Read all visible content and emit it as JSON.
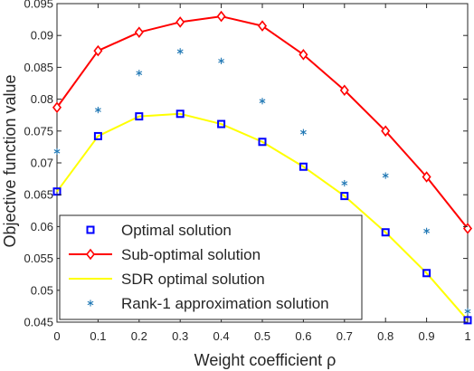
{
  "chart_data": {
    "type": "line",
    "xlabel": "Weight coefficient ρ",
    "ylabel": "Objective function value",
    "xlim": [
      0,
      1
    ],
    "ylim": [
      0.045,
      0.095
    ],
    "x": [
      0,
      0.1,
      0.2,
      0.3,
      0.4,
      0.5,
      0.6,
      0.7,
      0.8,
      0.9,
      1
    ],
    "xticks": [
      "0",
      "0.1",
      "0.2",
      "0.3",
      "0.4",
      "0.5",
      "0.6",
      "0.7",
      "0.8",
      "0.9",
      "1"
    ],
    "yticks": [
      "0.045",
      "0.05",
      "0.055",
      "0.06",
      "0.065",
      "0.07",
      "0.075",
      "0.08",
      "0.085",
      "0.09",
      "0.095"
    ],
    "grid": false,
    "legend_position": "bottom-left",
    "series": [
      {
        "name": "Optimal solution",
        "style": "square-markers",
        "color": "#0000ff",
        "values": [
          0.0655,
          0.0742,
          0.0773,
          0.0777,
          0.0761,
          0.0733,
          0.0694,
          0.0648,
          0.0591,
          0.0527,
          0.0453
        ]
      },
      {
        "name": "Sub-optimal solution",
        "style": "line-diamond",
        "color": "#ff0000",
        "values": [
          0.0787,
          0.0876,
          0.0905,
          0.0921,
          0.093,
          0.0915,
          0.087,
          0.0814,
          0.075,
          0.0678,
          0.0597
        ]
      },
      {
        "name": "SDR optimal solution",
        "style": "line",
        "color": "#ffff00",
        "values": [
          0.0655,
          0.0742,
          0.0773,
          0.0777,
          0.0761,
          0.0733,
          0.0694,
          0.0648,
          0.0591,
          0.0527,
          0.0453
        ]
      },
      {
        "name": "Rank-1 approximation solution",
        "style": "asterisk-markers",
        "color": "#1f77b4",
        "values": [
          0.0718,
          0.0783,
          0.0841,
          0.0875,
          0.086,
          0.0797,
          0.0748,
          0.0668,
          0.068,
          0.0593,
          0.0467
        ]
      }
    ]
  }
}
